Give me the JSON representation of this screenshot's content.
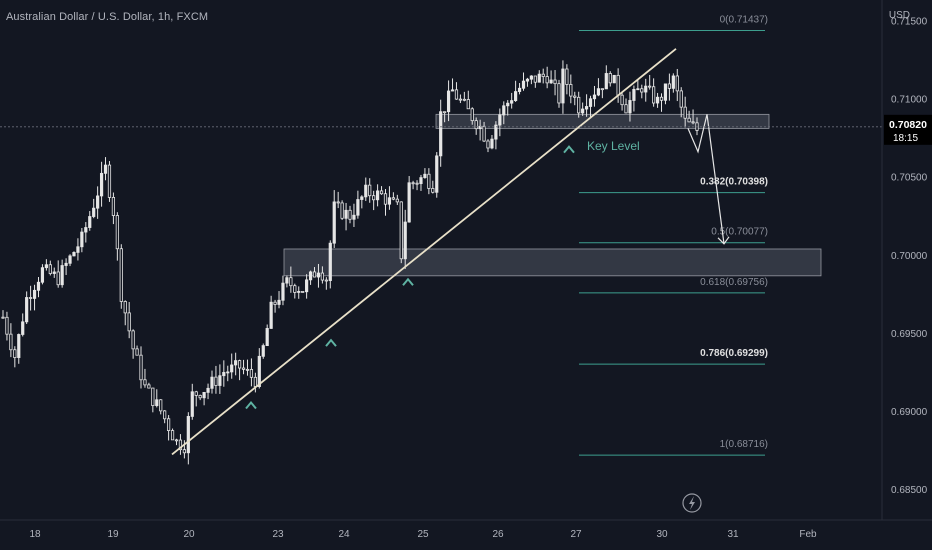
{
  "header": {
    "title": "Australian Dollar / U.S. Dollar, 1h, FXCM",
    "currency": "USD"
  },
  "price_label": {
    "price": "0.70820",
    "countdown": "18:15"
  },
  "colors": {
    "background": "#131722",
    "candle": "#e6e6e6",
    "fib_line": "#3d9e8e",
    "fib_text": "#c8c8c8",
    "zone_fill": "#3a3e4a",
    "trendline": "#e8e0c8",
    "marker": "#5fb3a3"
  },
  "chart_data": {
    "type": "candlestick",
    "y_axis": {
      "ticks": [
        "0.71500",
        "0.71000",
        "0.70500",
        "0.70000",
        "0.69500",
        "0.69000",
        "0.68500"
      ],
      "tick_values": [
        0.715,
        0.71,
        0.705,
        0.7,
        0.695,
        0.69,
        0.685
      ],
      "range": [
        0.683,
        0.7162
      ]
    },
    "x_axis": {
      "ticks": [
        "18",
        "19",
        "20",
        "23",
        "24",
        "25",
        "26",
        "27",
        "30",
        "31",
        "Feb"
      ]
    },
    "price_anchors": [
      [
        0,
        0.696
      ],
      [
        3,
        0.6935
      ],
      [
        6,
        0.6972
      ],
      [
        10,
        0.699
      ],
      [
        14,
        0.6985
      ],
      [
        18,
        0.7002
      ],
      [
        20,
        0.701
      ],
      [
        24,
        0.704
      ],
      [
        26,
        0.7055
      ],
      [
        28,
        0.7028
      ],
      [
        30,
        0.6975
      ],
      [
        33,
        0.694
      ],
      [
        36,
        0.6915
      ],
      [
        40,
        0.69
      ],
      [
        44,
        0.688
      ],
      [
        46,
        0.6878
      ],
      [
        48,
        0.691
      ],
      [
        52,
        0.6915
      ],
      [
        56,
        0.6925
      ],
      [
        60,
        0.6928
      ],
      [
        64,
        0.692
      ],
      [
        66,
        0.694
      ],
      [
        68,
        0.6965
      ],
      [
        72,
        0.6982
      ],
      [
        76,
        0.6978
      ],
      [
        80,
        0.6992
      ],
      [
        82,
        0.6985
      ],
      [
        84,
        0.703
      ],
      [
        88,
        0.7025
      ],
      [
        92,
        0.704
      ],
      [
        96,
        0.7038
      ],
      [
        100,
        0.703
      ],
      [
        101,
        0.7
      ],
      [
        103,
        0.7045
      ],
      [
        107,
        0.705
      ],
      [
        109,
        0.7045
      ],
      [
        111,
        0.709
      ],
      [
        114,
        0.7105
      ],
      [
        117,
        0.7095
      ],
      [
        121,
        0.7082
      ],
      [
        123,
        0.7072
      ],
      [
        126,
        0.709
      ],
      [
        130,
        0.7105
      ],
      [
        134,
        0.7112
      ],
      [
        138,
        0.7115
      ],
      [
        141,
        0.71
      ],
      [
        142,
        0.7115
      ],
      [
        146,
        0.7095
      ],
      [
        150,
        0.7105
      ],
      [
        154,
        0.7115
      ],
      [
        158,
        0.7095
      ],
      [
        162,
        0.7108
      ],
      [
        166,
        0.7098
      ],
      [
        170,
        0.7112
      ],
      [
        173,
        0.7085
      ],
      [
        176,
        0.708
      ]
    ],
    "fibonacci": [
      {
        "ratio": "0",
        "price": "0.71437",
        "label": "0(0.71437)",
        "bold": false
      },
      {
        "ratio": "0.382",
        "price": "0.70398",
        "label": "0.382(0.70398)",
        "bold": true
      },
      {
        "ratio": "0.5",
        "price": "0.70077",
        "label": "0.5(0.70077)",
        "bold": false
      },
      {
        "ratio": "0.618",
        "price": "0.69756",
        "label": "0.618(0.69756)",
        "bold": false
      },
      {
        "ratio": "0.786",
        "price": "0.69299",
        "label": "0.786(0.69299)",
        "bold": true
      },
      {
        "ratio": "1",
        "price": "0.68716",
        "label": "1(0.68716)",
        "bold": false
      }
    ],
    "zones": [
      {
        "name": "key-level-zone",
        "top": 0.709,
        "bottom": 0.7081
      },
      {
        "name": "support-zone",
        "top": 0.70037,
        "bottom": 0.69865
      }
    ],
    "trendline": {
      "from": [
        0.6872
      ],
      "to": [
        0.7132
      ]
    },
    "annotations": [
      {
        "name": "key-level-label",
        "text": "Key Level"
      }
    ]
  }
}
